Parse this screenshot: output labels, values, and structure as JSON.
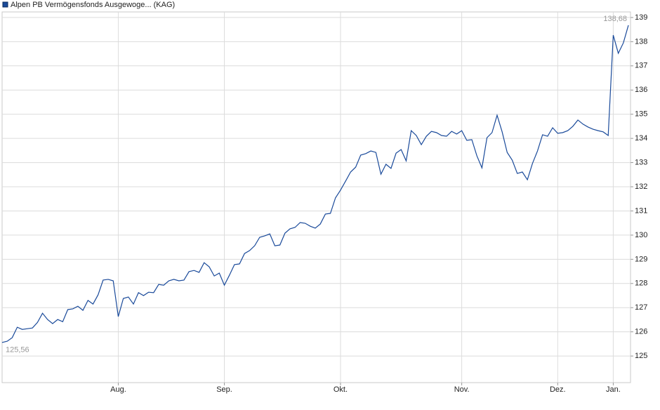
{
  "chart_data": {
    "type": "line",
    "categories": [
      null,
      null,
      null,
      null,
      null,
      null,
      null,
      null,
      null,
      null,
      null,
      null,
      null,
      null,
      null,
      null,
      null,
      null,
      null,
      null,
      null,
      null,
      null,
      "Aug.",
      null,
      null,
      null,
      null,
      null,
      null,
      null,
      null,
      null,
      null,
      null,
      null,
      null,
      null,
      null,
      null,
      null,
      null,
      null,
      null,
      "Sep.",
      null,
      null,
      null,
      null,
      null,
      null,
      null,
      null,
      null,
      null,
      null,
      null,
      null,
      null,
      null,
      null,
      null,
      null,
      null,
      null,
      null,
      null,
      "Okt.",
      null,
      null,
      null,
      null,
      null,
      null,
      null,
      null,
      null,
      null,
      null,
      null,
      null,
      null,
      null,
      null,
      null,
      null,
      null,
      null,
      null,
      null,
      null,
      "Nov.",
      null,
      null,
      null,
      null,
      null,
      null,
      null,
      null,
      null,
      null,
      null,
      null,
      null,
      null,
      null,
      null,
      null,
      null,
      "Dez.",
      null,
      null,
      null,
      null,
      null,
      null,
      null,
      null,
      null,
      null,
      "Jan.",
      null,
      null,
      null
    ],
    "series": [
      {
        "name": "Alpen PB Vermögensfonds Ausgewoge... (KAG)",
        "color": "#1a4a9a",
        "values": [
          125.56,
          125.61,
          125.76,
          126.19,
          126.1,
          126.13,
          126.16,
          126.39,
          126.77,
          126.51,
          126.34,
          126.51,
          126.42,
          126.92,
          126.95,
          127.06,
          126.89,
          127.3,
          127.15,
          127.53,
          128.14,
          128.17,
          128.11,
          126.63,
          127.38,
          127.44,
          127.15,
          127.62,
          127.5,
          127.64,
          127.62,
          127.96,
          127.93,
          128.11,
          128.17,
          128.11,
          128.14,
          128.49,
          128.54,
          128.46,
          128.86,
          128.69,
          128.31,
          128.43,
          127.93,
          128.34,
          128.78,
          128.81,
          129.24,
          129.36,
          129.56,
          129.91,
          129.97,
          130.05,
          129.56,
          129.59,
          130.08,
          130.26,
          130.32,
          130.52,
          130.49,
          130.37,
          130.29,
          130.46,
          130.87,
          130.9,
          131.54,
          131.86,
          132.23,
          132.61,
          132.81,
          133.31,
          133.37,
          133.48,
          133.42,
          132.52,
          132.93,
          132.76,
          133.39,
          133.54,
          133.07,
          134.32,
          134.12,
          133.74,
          134.09,
          134.29,
          134.24,
          134.12,
          134.09,
          134.29,
          134.18,
          134.32,
          133.92,
          133.95,
          133.28,
          132.78,
          134.03,
          134.24,
          134.96,
          134.27,
          133.42,
          133.1,
          132.55,
          132.61,
          132.29,
          132.96,
          133.48,
          134.15,
          134.09,
          134.44,
          134.21,
          134.24,
          134.32,
          134.5,
          134.76,
          134.59,
          134.47,
          134.38,
          134.32,
          134.27,
          134.12,
          138.27,
          137.52,
          137.95,
          138.68
        ],
        "value_labels": [
          "125,56",
          null,
          null,
          null,
          null,
          null,
          null,
          null,
          null,
          null,
          null,
          null,
          null,
          null,
          null,
          null,
          null,
          null,
          null,
          null,
          null,
          null,
          null,
          null,
          null,
          null,
          null,
          null,
          null,
          null,
          null,
          null,
          null,
          null,
          null,
          null,
          null,
          null,
          null,
          null,
          null,
          null,
          null,
          null,
          null,
          null,
          null,
          null,
          null,
          null,
          null,
          null,
          null,
          null,
          null,
          null,
          null,
          null,
          null,
          null,
          null,
          null,
          null,
          null,
          null,
          null,
          null,
          null,
          null,
          null,
          null,
          null,
          null,
          null,
          null,
          null,
          null,
          null,
          null,
          null,
          null,
          null,
          null,
          null,
          null,
          null,
          null,
          null,
          null,
          null,
          null,
          null,
          null,
          null,
          null,
          null,
          null,
          null,
          null,
          null,
          null,
          null,
          null,
          null,
          null,
          null,
          null,
          null,
          null,
          null,
          null,
          null,
          null,
          null,
          null,
          null,
          null,
          null,
          null,
          null,
          null,
          null,
          null,
          null,
          "138,68"
        ]
      }
    ],
    "ylim": [
      123.9,
      139.23
    ],
    "yticks": [
      125,
      126,
      127,
      128,
      129,
      130,
      131,
      132,
      133,
      134,
      135,
      136,
      137,
      138,
      139
    ],
    "grid": true,
    "legend": "top-left"
  }
}
